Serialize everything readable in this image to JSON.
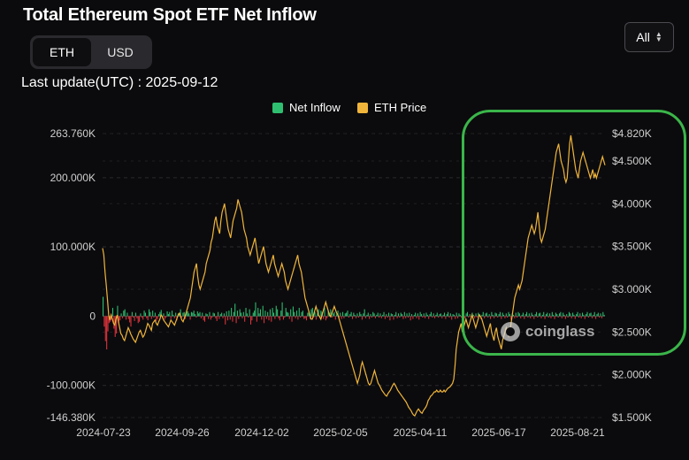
{
  "header": {
    "title": "Total Ethereum Spot ETF Net Inflow",
    "last_update": "Last update(UTC) : 2025-09-12"
  },
  "unit_toggle": {
    "options": [
      "ETH",
      "USD"
    ],
    "selected": "ETH"
  },
  "range_select": {
    "value": "All"
  },
  "watermark": {
    "text": "coinglass"
  },
  "colors": {
    "inflow_positive": "#2fbf71",
    "inflow_negative": "#e0323c",
    "price_line": "#f0b53a",
    "highlight_box": "#3bb54a",
    "background": "#0b0b0d"
  },
  "chart_data": {
    "type": "bar+line",
    "title": "Total Ethereum Spot ETF Net Inflow",
    "legend": {
      "placement": "top-center",
      "entries": [
        "Net Inflow",
        "ETH Price"
      ]
    },
    "x_ticks": [
      "2024-07-23",
      "2024-09-26",
      "2024-12-02",
      "2025-02-05",
      "2025-04-11",
      "2025-06-17",
      "2025-08-21"
    ],
    "y_left": {
      "ticks": [
        "263.760K",
        "200.000K",
        "100.000K",
        "0",
        "-100.000K",
        "-146.380K"
      ],
      "range": [
        -146380,
        263760
      ]
    },
    "y_right": {
      "ticks": [
        "$4.820K",
        "$4.500K",
        "$4.000K",
        "$3.500K",
        "$3.000K",
        "$2.500K",
        "$2.000K",
        "$1.500K"
      ],
      "range": [
        1500,
        4820
      ]
    },
    "grid": true,
    "series": [
      {
        "name": "Net Inflow",
        "kind": "bar",
        "start_date": "2024-07-23",
        "values": [
          28000,
          -15000,
          -36000,
          -48000,
          -22000,
          -10000,
          -8000,
          -5000,
          12000,
          -18000,
          -30000,
          -25000,
          15000,
          -10000,
          -6000,
          4000,
          -3000,
          8000,
          10000,
          -5000,
          5000,
          -4000,
          -9000,
          -15000,
          6000,
          -2000,
          -7000,
          5000,
          -3000,
          -10000,
          -8000,
          4000,
          -2000,
          -5000,
          8000,
          5000,
          -3000,
          -6000,
          10000,
          6000,
          -4000,
          8000,
          -2000,
          5000,
          -7000,
          -4000,
          3000,
          6000,
          9000,
          -3000,
          4000,
          -5000,
          -2000,
          7000,
          3000,
          6000,
          -4000,
          8000,
          2000,
          -3000,
          5000,
          -6000,
          4000,
          3000,
          10000,
          -2000,
          5000,
          6000,
          -4000,
          8000,
          7000,
          4000,
          -5000,
          6000,
          5000,
          8000,
          3000,
          -2000,
          7000,
          4000,
          6000,
          -3000,
          5000,
          -6000,
          -8000,
          4000,
          3000,
          -4000,
          6000,
          -5000,
          -2000,
          5000,
          4000,
          -3000,
          -7000,
          6000,
          -4000,
          3000,
          5000,
          -3000,
          4000,
          -12000,
          7000,
          -6000,
          8000,
          -5000,
          12000,
          -8000,
          6000,
          18000,
          -10000,
          8000,
          -4000,
          10000,
          5000,
          -3000,
          6000,
          -8000,
          12000,
          4000,
          -2000,
          10000,
          -12000,
          -6000,
          5000,
          8000,
          20000,
          -8000,
          12000,
          4000,
          10000,
          -5000,
          15000,
          -10000,
          8000,
          -4000,
          6000,
          -6000,
          10000,
          -8000,
          12000,
          5000,
          -4000,
          15000,
          10000,
          -3000,
          -6000,
          8000,
          20000,
          -5000,
          -2000,
          12000,
          6000,
          5000,
          -4000,
          10000,
          -8000,
          14000,
          6000,
          -3000,
          8000,
          -5000,
          12000,
          -2000,
          6000,
          8000,
          -4000,
          -3000,
          -6000,
          5000,
          8000,
          -4000,
          10000,
          12000,
          -2000,
          6000,
          -5000,
          4000,
          10000,
          -3000,
          8000,
          6000,
          -4000,
          12000,
          -6000,
          -3000,
          8000,
          5000,
          10000,
          -2000,
          4000,
          6000,
          -5000,
          3000,
          8000,
          -2000,
          5000,
          -4000,
          6000,
          -3000,
          4000,
          5000,
          8000,
          -2000,
          3000,
          6000,
          -4000,
          5000,
          2000,
          -3000,
          4000,
          -2000,
          6000,
          3000,
          -5000,
          4000,
          10000,
          -3000,
          2000,
          5000,
          -4000,
          3000,
          -2000,
          6000,
          4000,
          -3000,
          2000,
          5000,
          -2000,
          4000,
          -3000,
          2000,
          6000,
          -4000,
          3000,
          -2000,
          5000,
          -6000,
          4000,
          3000,
          -5000,
          2000,
          6000,
          -3000,
          4000,
          -2000,
          5000,
          3000,
          -4000,
          6000,
          -3000,
          4000,
          -2000,
          5000,
          -6000,
          3000,
          -4000,
          2000,
          5000,
          -3000,
          4000,
          -5000,
          6000,
          3000,
          -2000,
          4000,
          -3000,
          5000,
          2000,
          -4000,
          3000,
          6000,
          -2000,
          4000,
          -3000,
          2000,
          5000,
          -2000,
          3000,
          4000,
          -3000,
          2000,
          5000,
          -4000,
          3000,
          6000,
          -2000,
          4000,
          -5000,
          3000,
          2000,
          -4000,
          5000,
          -3000,
          4000,
          2000,
          -2000,
          3000,
          5000,
          -3000,
          4000,
          6000,
          -2000,
          3000,
          -4000,
          5000,
          2000,
          -3000,
          4000,
          -2000,
          5000,
          3000,
          -4000,
          2000,
          6000,
          -3000,
          4000,
          5000,
          -2000,
          3000,
          -4000,
          6000,
          2000,
          -3000,
          5000,
          4000,
          -2000,
          3000,
          6000,
          -4000,
          5000,
          2000,
          -3000,
          4000,
          -2000,
          6000,
          3000,
          -5000,
          4000,
          2000,
          -3000,
          5000,
          -2000,
          6000,
          4000,
          -3000,
          2000,
          5000,
          -4000,
          3000,
          6000,
          -2000,
          4000,
          -3000,
          5000,
          2000,
          -4000,
          3000,
          6000,
          -2000,
          4000,
          5000,
          -3000,
          2000,
          6000,
          -4000,
          3000,
          5000,
          -2000,
          4000,
          -3000,
          6000,
          2000,
          -4000,
          5000,
          3000,
          -2000,
          4000,
          6000,
          -3000,
          5000,
          2000,
          -4000,
          3000,
          -2000,
          6000,
          4000,
          -3000,
          5000,
          2000,
          -4000,
          3000,
          6000,
          -2000,
          4000,
          -3000,
          5000,
          2000,
          -4000,
          3000,
          6000,
          -2000,
          4000,
          5000,
          -3000,
          2000,
          6000,
          -4000,
          3000,
          5000,
          -2000,
          4000,
          -3000,
          6000,
          2000
        ],
        "note_values": "daily values, ETH"
      },
      {
        "name": "ETH Price",
        "kind": "line",
        "axis": "right",
        "values": [
          3480,
          3400,
          3200,
          3050,
          2880,
          2700,
          2640,
          2700,
          2650,
          2600,
          2580,
          2650,
          2700,
          2620,
          2550,
          2480,
          2460,
          2420,
          2400,
          2450,
          2500,
          2550,
          2520,
          2480,
          2450,
          2420,
          2400,
          2380,
          2420,
          2460,
          2500,
          2520,
          2480,
          2440,
          2460,
          2500,
          2550,
          2600,
          2580,
          2550,
          2520,
          2600,
          2620,
          2640,
          2600,
          2580,
          2620,
          2650,
          2700,
          2680,
          2640,
          2620,
          2600,
          2580,
          2560,
          2600,
          2640,
          2620,
          2600,
          2580,
          2620,
          2660,
          2700,
          2720,
          2680,
          2640,
          2620,
          2660,
          2700,
          2750,
          2800,
          2850,
          2900,
          3000,
          3100,
          3200,
          3250,
          3300,
          3150,
          3050,
          3000,
          3050,
          3100,
          3150,
          3200,
          3300,
          3350,
          3400,
          3450,
          3550,
          3600,
          3700,
          3800,
          3850,
          3750,
          3700,
          3650,
          3800,
          3900,
          3950,
          4000,
          3900,
          3800,
          3700,
          3650,
          3600,
          3700,
          3800,
          3850,
          3900,
          3950,
          4050,
          4000,
          3950,
          3900,
          3800,
          3700,
          3650,
          3600,
          3500,
          3450,
          3400,
          3450,
          3500,
          3550,
          3600,
          3500,
          3400,
          3300,
          3350,
          3400,
          3450,
          3500,
          3400,
          3300,
          3250,
          3200,
          3250,
          3300,
          3350,
          3400,
          3300,
          3250,
          3200,
          3150,
          3200,
          3250,
          3300,
          3250,
          3200,
          3100,
          3050,
          3000,
          3050,
          3100,
          3150,
          3200,
          3250,
          3300,
          3350,
          3400,
          3300,
          3250,
          3200,
          3100,
          3000,
          2900,
          2850,
          2800,
          2750,
          2700,
          2650,
          2650,
          2700,
          2750,
          2800,
          2750,
          2700,
          2680,
          2650,
          2700,
          2750,
          2800,
          2850,
          2800,
          2750,
          2700,
          2680,
          2720,
          2760,
          2800,
          2760,
          2720,
          2700,
          2650,
          2600,
          2550,
          2500,
          2450,
          2400,
          2350,
          2300,
          2250,
          2200,
          2150,
          2100,
          2050,
          2000,
          1950,
          1900,
          1950,
          2000,
          2100,
          2150,
          2100,
          2050,
          2000,
          1950,
          1900,
          1880,
          1900,
          1950,
          2000,
          2050,
          2000,
          1950,
          1900,
          1880,
          1850,
          1820,
          1800,
          1780,
          1760,
          1750,
          1780,
          1800,
          1820,
          1850,
          1880,
          1900,
          1880,
          1850,
          1820,
          1800,
          1780,
          1760,
          1740,
          1720,
          1700,
          1680,
          1650,
          1620,
          1600,
          1580,
          1550,
          1530,
          1520,
          1550,
          1580,
          1600,
          1580,
          1560,
          1550,
          1580,
          1600,
          1620,
          1650,
          1700,
          1720,
          1750,
          1760,
          1780,
          1800,
          1800,
          1820,
          1800,
          1800,
          1820,
          1800,
          1800,
          1820,
          1800,
          1820,
          1840,
          1850,
          1860,
          1880,
          1900,
          1950,
          2100,
          2300,
          2400,
          2500,
          2550,
          2600,
          2500,
          2550,
          2600,
          2650,
          2600,
          2550,
          2600,
          2650,
          2700,
          2650,
          2600,
          2550,
          2600,
          2650,
          2700,
          2680,
          2650,
          2600,
          2550,
          2500,
          2450,
          2500,
          2550,
          2600,
          2500,
          2450,
          2400,
          2500,
          2550,
          2450,
          2400,
          2350,
          2300,
          2400,
          2450,
          2500,
          2550,
          2500,
          2450,
          2500,
          2600,
          2700,
          2800,
          2900,
          2950,
          3000,
          3050,
          3000,
          3050,
          3100,
          3200,
          3300,
          3400,
          3500,
          3600,
          3650,
          3700,
          3750,
          3700,
          3650,
          3700,
          3800,
          3900,
          3750,
          3600,
          3550,
          3600,
          3650,
          3700,
          3800,
          3900,
          4000,
          4100,
          4200,
          4300,
          4400,
          4500,
          4600,
          4650,
          4700,
          4600,
          4500,
          4450,
          4400,
          4300,
          4250,
          4300,
          4500,
          4700,
          4800,
          4700,
          4600,
          4500,
          4400,
          4350,
          4300,
          4400,
          4500,
          4550,
          4600,
          4550,
          4500,
          4450,
          4400,
          4350,
          4300,
          4350,
          4400,
          4300,
          4350,
          4300,
          4350,
          4400,
          4450,
          4500,
          4550,
          4500,
          4450
        ]
      }
    ]
  }
}
